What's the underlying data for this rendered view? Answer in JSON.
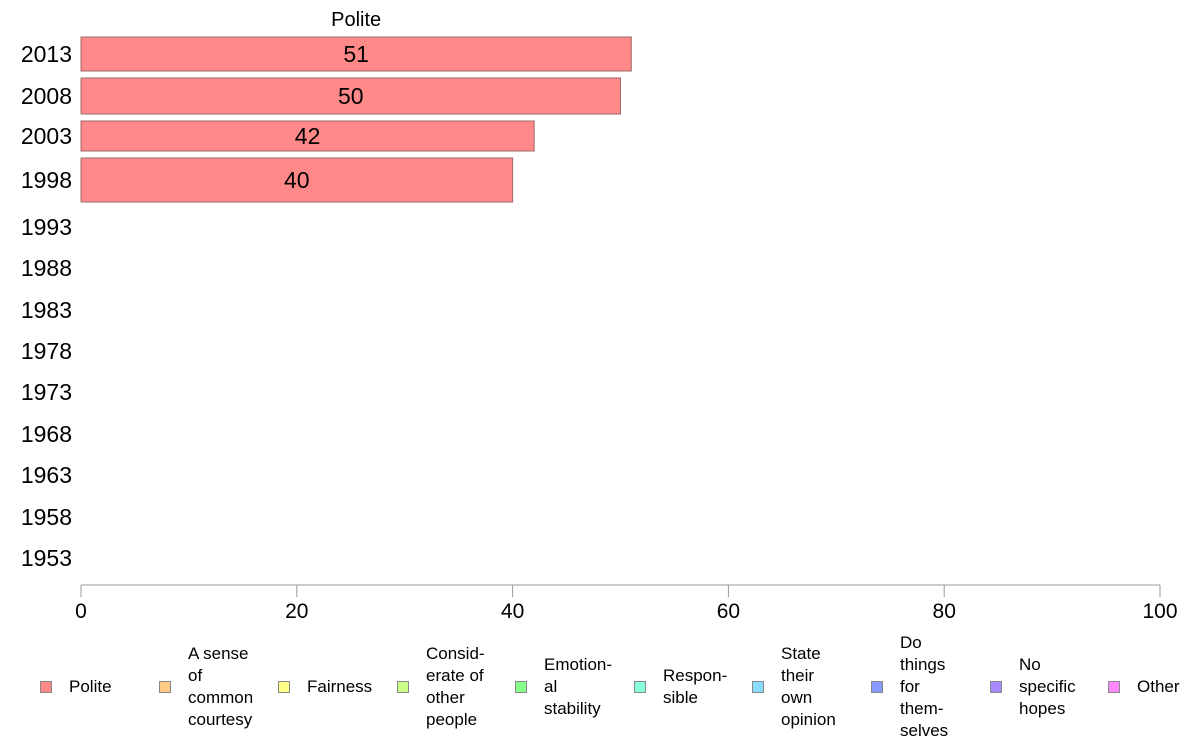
{
  "colors": {
    "axis": "#999999",
    "bar_stroke": "#a06a6a",
    "swatch_stroke": "#888888"
  },
  "chart_data": {
    "type": "bar",
    "orientation": "horizontal",
    "title": "Polite",
    "categories": [
      "2013",
      "2008",
      "2003",
      "1998",
      "1993",
      "1988",
      "1983",
      "1978",
      "1973",
      "1968",
      "1963",
      "1958",
      "1953"
    ],
    "series": [
      {
        "name": "Polite",
        "color": "#ff8888",
        "values": [
          51,
          50,
          42,
          40,
          null,
          null,
          null,
          null,
          null,
          null,
          null,
          null,
          null
        ]
      }
    ],
    "xlim": [
      0,
      100
    ],
    "xticks": [
      "0",
      "20",
      "40",
      "60",
      "80",
      "100"
    ],
    "xlabel": "",
    "ylabel": "",
    "grid": false,
    "legend_position": "bottom",
    "legend": [
      {
        "label": "Polite",
        "color": "#ff8888"
      },
      {
        "label": "A sense\nof\ncommon\ncourtesy",
        "color": "#ffcc88"
      },
      {
        "label": "Fairness",
        "color": "#ffff88"
      },
      {
        "label": "Consid-\nerate of\nother\npeople",
        "color": "#ccff88"
      },
      {
        "label": "Emotion-\nal\nstability",
        "color": "#88ff88"
      },
      {
        "label": "Respon-\nsible",
        "color": "#88ffdd"
      },
      {
        "label": "State\ntheir\nown\nopinion",
        "color": "#88ddff"
      },
      {
        "label": "Do\nthings\nfor\nthem-\nselves",
        "color": "#8899ff"
      },
      {
        "label": "No\nspecific\nhopes",
        "color": "#aa88ff"
      },
      {
        "label": "Other",
        "color": "#ff88ff"
      }
    ]
  }
}
